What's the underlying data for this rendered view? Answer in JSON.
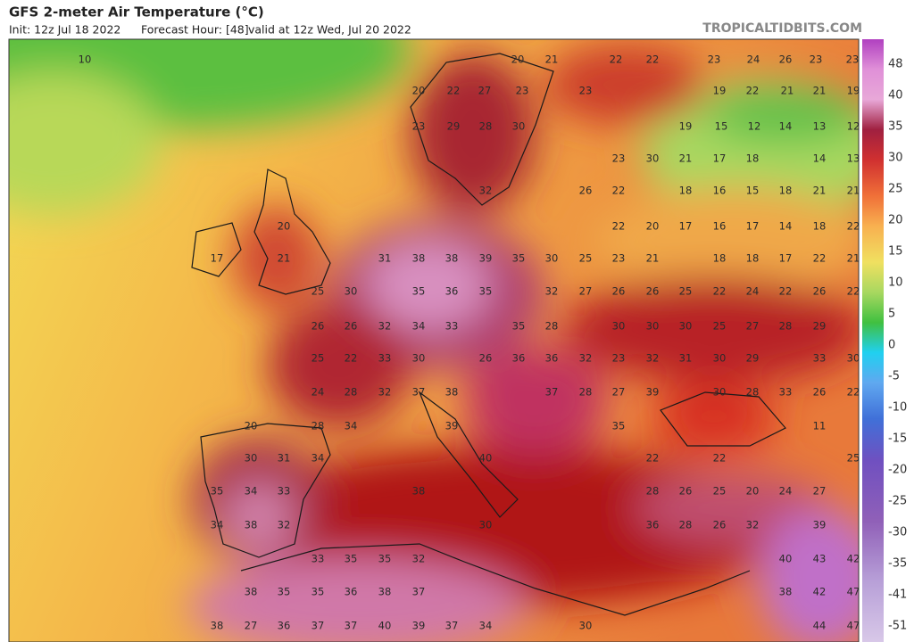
{
  "header": {
    "title": "GFS 2-meter Air Temperature (°C)",
    "init": "Init: 12z Jul 18 2022",
    "forecast_hour": "Forecast Hour: [48]",
    "valid": "valid at 12z Wed, Jul 20 2022",
    "site": "TROPICALTIDBITS.COM"
  },
  "colorbar": {
    "labels": [
      "48",
      "40",
      "35",
      "30",
      "25",
      "20",
      "15",
      "10",
      "5",
      "0",
      "-5",
      "-10",
      "-15",
      "-20",
      "-25",
      "-30",
      "-35",
      "-41",
      "-51"
    ]
  },
  "map": {
    "values": [
      10,
      20,
      21,
      22,
      22,
      23,
      24,
      26,
      23,
      23,
      20,
      22,
      27,
      23,
      23,
      19,
      22,
      21,
      21,
      19,
      23,
      29,
      28,
      30,
      19,
      15,
      12,
      14,
      13,
      12,
      23,
      30,
      21,
      17,
      18,
      14,
      13,
      32,
      26,
      22,
      18,
      16,
      15,
      18,
      21,
      21,
      20,
      22,
      20,
      17,
      16,
      17,
      14,
      18,
      22,
      17,
      21,
      31,
      38,
      38,
      39,
      35,
      30,
      25,
      23,
      21,
      18,
      18,
      17,
      22,
      21,
      25,
      30,
      35,
      36,
      35,
      32,
      27,
      26,
      26,
      25,
      22,
      24,
      22,
      26,
      22,
      26,
      26,
      32,
      34,
      33,
      35,
      28,
      30,
      30,
      30,
      25,
      27,
      28,
      29,
      25,
      22,
      33,
      30,
      26,
      36,
      36,
      32,
      23,
      32,
      31,
      30,
      29,
      33,
      30,
      24,
      28,
      32,
      37,
      38,
      37,
      28,
      27,
      39,
      30,
      28,
      33,
      26,
      22,
      20,
      28,
      34,
      39,
      35,
      11,
      30,
      31,
      34,
      40,
      22,
      22,
      25,
      35,
      34,
      33,
      38,
      28,
      26,
      25,
      20,
      24,
      27,
      34,
      38,
      32,
      30,
      36,
      28,
      26,
      32,
      39,
      33,
      35,
      35,
      32,
      40,
      43,
      42,
      38,
      35,
      35,
      36,
      38,
      37,
      38,
      42,
      47,
      38,
      27,
      36,
      37,
      37,
      40,
      39,
      37,
      34,
      30,
      44,
      47
    ]
  }
}
